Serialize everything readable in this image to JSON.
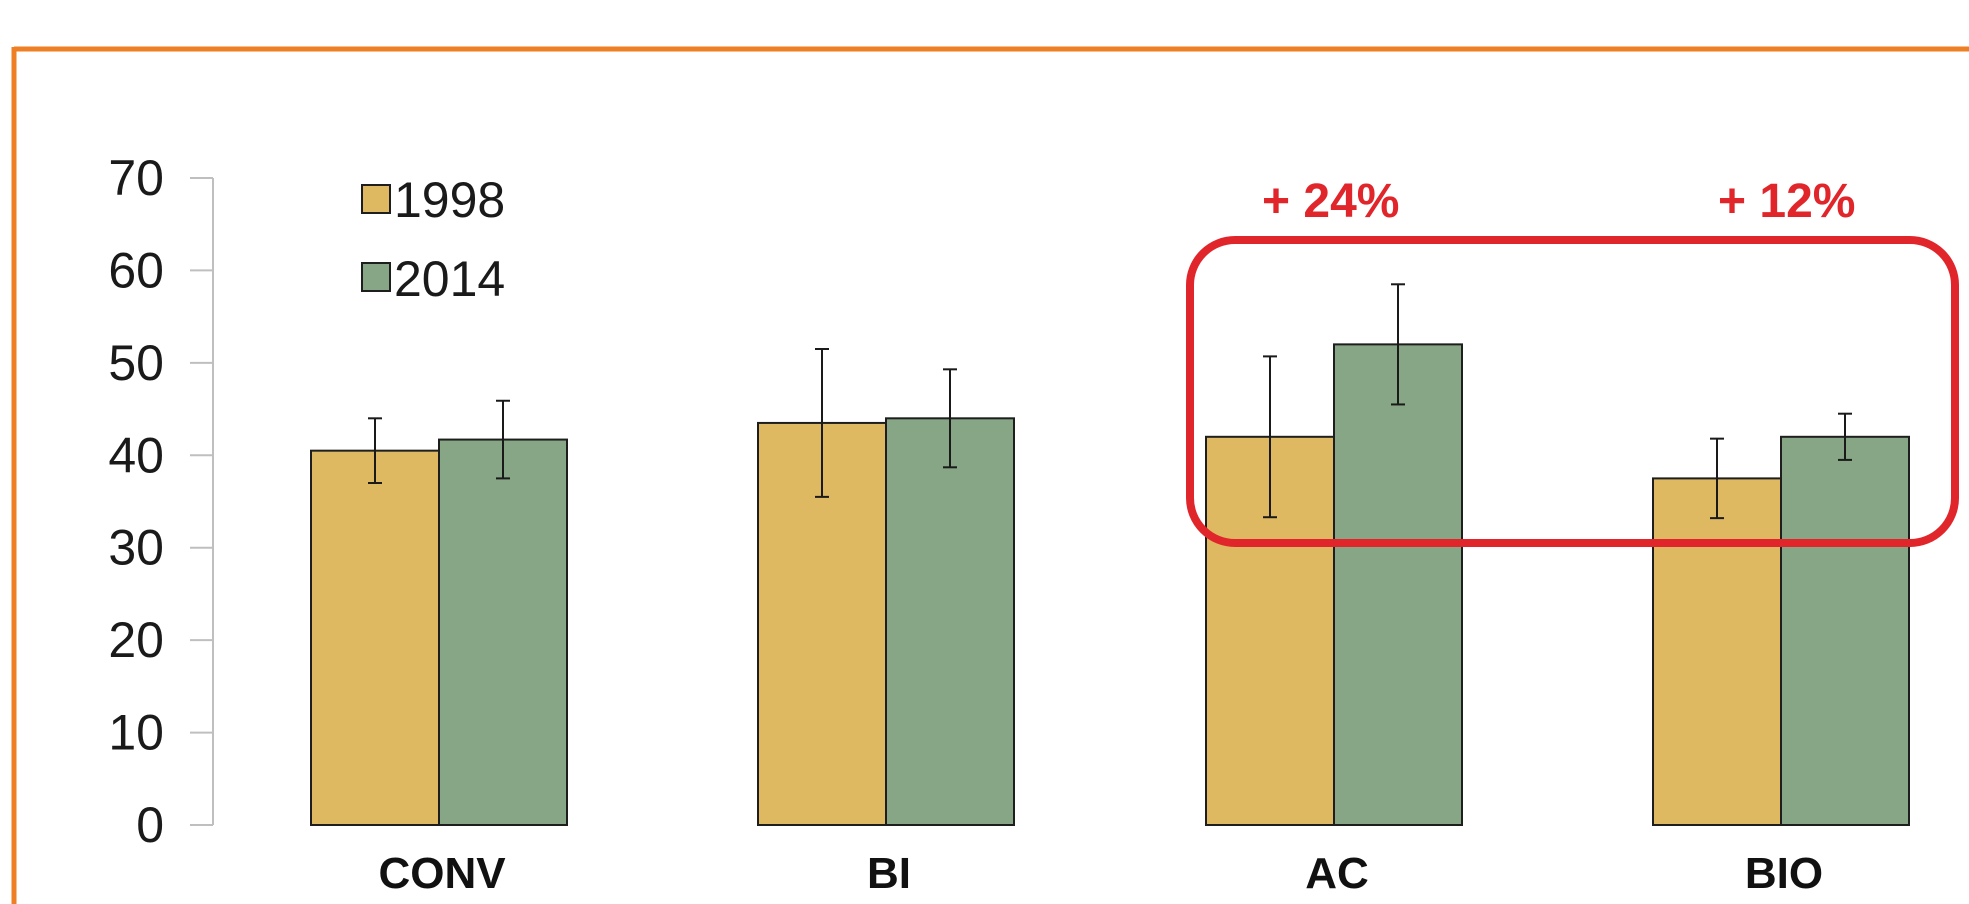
{
  "chart_data": {
    "type": "bar",
    "categories": [
      "CONV",
      "BI",
      "AC",
      "BIO"
    ],
    "series": [
      {
        "name": "1998",
        "values": [
          40.5,
          43.5,
          42.0,
          37.5
        ],
        "error": [
          3.5,
          8.0,
          8.7,
          4.3
        ]
      },
      {
        "name": "2014",
        "values": [
          41.7,
          44.0,
          52.0,
          42.0
        ],
        "error": [
          4.2,
          5.3,
          6.5,
          2.5
        ]
      }
    ],
    "ylim": [
      0,
      70
    ],
    "yticks": [
      0,
      10,
      20,
      30,
      40,
      50,
      60,
      70
    ],
    "legend_position": "top-left",
    "annotations": [
      "+ 24%",
      "+ 12%"
    ],
    "highlight": "AC and BIO categories enclosed in a red rounded rectangle",
    "grid": false
  },
  "colors": {
    "series": [
      "#dfb862",
      "#87a686"
    ],
    "outline": "#1e1e1e",
    "annotation": "#e1262b",
    "frame": "#ee7f24"
  }
}
